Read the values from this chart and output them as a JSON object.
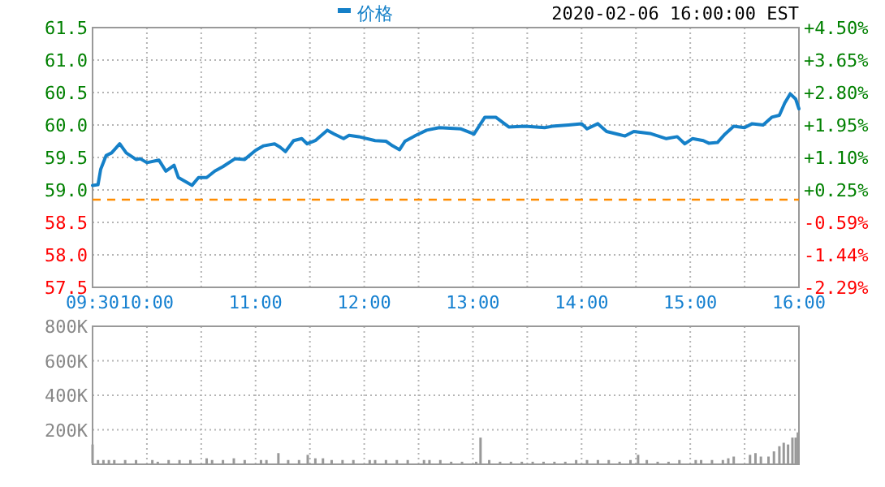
{
  "chart_data": [
    {
      "type": "line",
      "subtitle": "2020-02-06 16:00:00 EST",
      "legend": "top",
      "grid": true,
      "line_style": "solid",
      "series": [
        {
          "name": "价格",
          "color": "#1580c8",
          "x": [
            9.5,
            9.55,
            9.575,
            9.625,
            9.675,
            9.75,
            9.81,
            9.9,
            9.94,
            10.0,
            10.11,
            10.175,
            10.25,
            10.29,
            10.375,
            10.415,
            10.475,
            10.55,
            10.625,
            10.7,
            10.81,
            10.9,
            11.0,
            11.075,
            11.175,
            11.225,
            11.275,
            11.35,
            11.425,
            11.475,
            11.55,
            11.66,
            11.725,
            11.81,
            11.86,
            11.95,
            12.1,
            12.2,
            12.26,
            12.325,
            12.375,
            12.475,
            12.575,
            12.69,
            12.89,
            13.01,
            13.11,
            13.21,
            13.33,
            13.48,
            13.66,
            13.73,
            13.88,
            14.0,
            14.05,
            14.15,
            14.23,
            14.4,
            14.48,
            14.63,
            14.78,
            14.88,
            14.95,
            15.02,
            15.12,
            15.17,
            15.25,
            15.32,
            15.4,
            15.5,
            15.57,
            15.67,
            15.75,
            15.82,
            15.87,
            15.92,
            15.97,
            16.0
          ],
          "values": [
            59.07,
            59.08,
            59.32,
            59.53,
            59.57,
            59.71,
            59.57,
            59.47,
            59.48,
            59.42,
            59.46,
            59.29,
            59.38,
            59.19,
            59.11,
            59.07,
            59.19,
            59.19,
            59.29,
            59.36,
            59.48,
            59.47,
            59.61,
            59.68,
            59.71,
            59.66,
            59.59,
            59.76,
            59.79,
            59.71,
            59.76,
            59.92,
            59.86,
            59.79,
            59.84,
            59.82,
            59.76,
            59.75,
            59.68,
            59.62,
            59.75,
            59.84,
            59.92,
            59.96,
            59.94,
            59.86,
            60.12,
            60.12,
            59.97,
            59.98,
            59.96,
            59.98,
            60.0,
            60.02,
            59.94,
            60.02,
            59.9,
            59.83,
            59.9,
            59.87,
            59.79,
            59.82,
            59.71,
            59.79,
            59.76,
            59.72,
            59.73,
            59.86,
            59.98,
            59.96,
            60.02,
            60.0,
            60.12,
            60.15,
            60.34,
            60.48,
            60.4,
            60.25
          ]
        }
      ],
      "xlim": [
        9.5,
        16
      ],
      "xticks": [
        {
          "value": 9.5,
          "label": "09:30"
        },
        {
          "value": 10,
          "label": "10:00"
        },
        {
          "value": 10.5,
          "label": null
        },
        {
          "value": 11,
          "label": "11:00"
        },
        {
          "value": 11.5,
          "label": null
        },
        {
          "value": 12,
          "label": "12:00"
        },
        {
          "value": 12.5,
          "label": null
        },
        {
          "value": 13,
          "label": "13:00"
        },
        {
          "value": 13.5,
          "label": null
        },
        {
          "value": 14,
          "label": "14:00"
        },
        {
          "value": 14.5,
          "label": null
        },
        {
          "value": 15,
          "label": "15:00"
        },
        {
          "value": 15.5,
          "label": null
        },
        {
          "value": 16,
          "label": "16:00"
        }
      ],
      "ylim": [
        57.5,
        61.5
      ],
      "yticks": [
        57.5,
        {
          "value": 58,
          "label": "58.0"
        },
        58.5,
        {
          "value": 59,
          "label": "59.0"
        },
        59.5,
        {
          "value": 60,
          "label": "60.0"
        },
        60.5,
        {
          "value": 61,
          "label": "61.0"
        },
        61.5
      ],
      "y2lim": [
        -2.29,
        4.5
      ],
      "y2ticks": [
        {
          "value": -2.29,
          "label": "-2.29%"
        },
        {
          "value": -1.44,
          "label": "-1.44%"
        },
        {
          "value": -0.59,
          "label": "-0.59%"
        },
        {
          "value": 0.25,
          "label": "+0.25%"
        },
        {
          "value": 1.1,
          "label": "+1.10%"
        },
        {
          "value": 1.95,
          "label": "+1.95%"
        },
        {
          "value": 2.8,
          "label": "+2.80%"
        },
        {
          "value": 3.65,
          "label": "+3.65%"
        },
        {
          "value": 4.5,
          "label": "+4.50%"
        }
      ],
      "ref_lines": [
        {
          "axis": "y",
          "value": 58.85,
          "color": "#ff8c00",
          "line_style": "dashed"
        }
      ]
    },
    {
      "type": "bar",
      "color": "#999999",
      "grid": true,
      "tick_labels": "y",
      "x": [
        9.5,
        9.55,
        9.6,
        9.65,
        9.7,
        9.8,
        9.9,
        10.05,
        10.1,
        10.2,
        10.3,
        10.4,
        10.55,
        10.6,
        10.7,
        10.8,
        10.9,
        11.05,
        11.1,
        11.21,
        11.3,
        11.4,
        11.48,
        11.55,
        11.62,
        11.7,
        11.8,
        11.9,
        12.05,
        12.1,
        12.2,
        12.3,
        12.4,
        12.55,
        12.6,
        12.7,
        12.8,
        12.9,
        13.03,
        13.07,
        13.15,
        13.25,
        13.35,
        13.45,
        13.55,
        13.65,
        13.75,
        13.85,
        13.95,
        14.05,
        14.15,
        14.25,
        14.35,
        14.45,
        14.52,
        14.6,
        14.7,
        14.8,
        14.9,
        15.05,
        15.1,
        15.2,
        15.3,
        15.35,
        15.4,
        15.55,
        15.6,
        15.65,
        15.72,
        15.77,
        15.82,
        15.86,
        15.9,
        15.94,
        15.97,
        15.99
      ],
      "values": [
        110000,
        20000,
        20000,
        20000,
        20000,
        20000,
        20000,
        20000,
        10000,
        20000,
        20000,
        20000,
        30000,
        20000,
        20000,
        30000,
        20000,
        20000,
        20000,
        60000,
        20000,
        20000,
        50000,
        30000,
        30000,
        20000,
        20000,
        20000,
        20000,
        20000,
        20000,
        20000,
        20000,
        20000,
        20000,
        20000,
        10000,
        10000,
        10000,
        150000,
        20000,
        10000,
        10000,
        10000,
        10000,
        10000,
        10000,
        10000,
        20000,
        20000,
        20000,
        20000,
        10000,
        20000,
        50000,
        20000,
        10000,
        10000,
        20000,
        20000,
        20000,
        20000,
        20000,
        30000,
        40000,
        50000,
        60000,
        40000,
        40000,
        70000,
        100000,
        120000,
        110000,
        150000,
        150000,
        180000
      ],
      "xlim": [
        9.5,
        16
      ],
      "ylim": [
        0,
        800000
      ],
      "yticks": [
        {
          "value": 200000,
          "label": "200K"
        },
        {
          "value": 400000,
          "label": "400K"
        },
        {
          "value": 600000,
          "label": "600K"
        },
        {
          "value": 800000,
          "label": "800K"
        }
      ]
    }
  ]
}
